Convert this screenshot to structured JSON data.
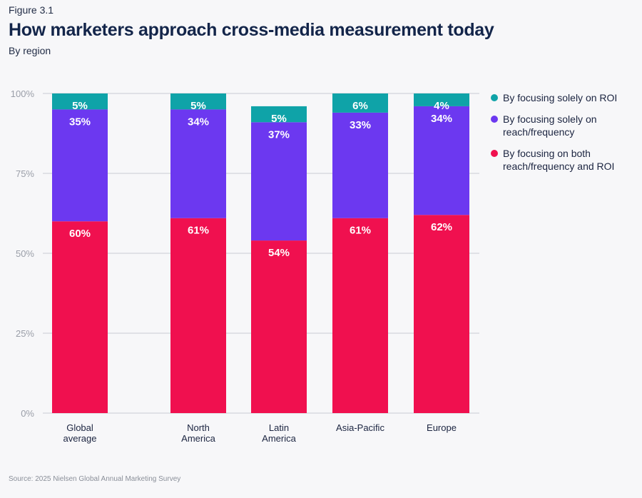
{
  "header": {
    "figure_label": "Figure 3.1",
    "title": "How marketers approach cross-media measurement today",
    "subtitle": "By region"
  },
  "source": "Source: 2025 Nielsen Global Annual Marketing Survey",
  "chart_data": {
    "type": "bar",
    "stacked": true,
    "title": "How marketers approach cross-media measurement today",
    "subtitle": "By region",
    "xlabel": "",
    "ylabel": "",
    "ylim": [
      0,
      100
    ],
    "y_ticks": [
      "0%",
      "25%",
      "50%",
      "75%",
      "100%"
    ],
    "y_tick_values": [
      0,
      25,
      50,
      75,
      100
    ],
    "grid": true,
    "legend_position": "right",
    "categories": [
      [
        "Global",
        "average"
      ],
      [
        "North",
        "America"
      ],
      [
        "Latin",
        "America"
      ],
      [
        "Asia-Pacific"
      ],
      [
        "Europe"
      ]
    ],
    "series": [
      {
        "name": "By focusing on both reach/frequency and ROI",
        "legend_lines": [
          "By focusing on both",
          "reach/frequency and ROI"
        ],
        "color": "#f0104f",
        "values": [
          60,
          61,
          54,
          61,
          62
        ],
        "labels": [
          "60%",
          "61%",
          "54%",
          "61%",
          "62%"
        ]
      },
      {
        "name": "By focusing solely on reach/frequency",
        "legend_lines": [
          "By focusing solely on",
          "reach/frequency"
        ],
        "color": "#6c38f0",
        "values": [
          35,
          34,
          37,
          33,
          34
        ],
        "labels": [
          "35%",
          "34%",
          "37%",
          "33%",
          "34%"
        ]
      },
      {
        "name": "By focusing solely on ROI",
        "legend_lines": [
          "By focusing solely on ROI"
        ],
        "color": "#0fa3a8",
        "values": [
          5,
          5,
          5,
          6,
          4
        ],
        "labels": [
          "5%",
          "5%",
          "5%",
          "6%",
          "4%"
        ]
      }
    ],
    "legend_order": [
      2,
      1,
      0
    ]
  }
}
